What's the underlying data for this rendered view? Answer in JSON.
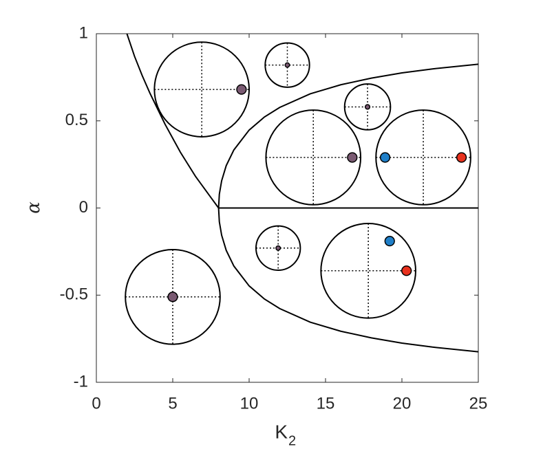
{
  "chart_data": {
    "type": "line",
    "x_label": "K",
    "x_label_subscript": "2",
    "y_label": "α",
    "xlim": [
      0,
      25
    ],
    "xticks": [
      0,
      5,
      10,
      15,
      20,
      25
    ],
    "ylim": [
      -1,
      1
    ],
    "yticks": [
      -1,
      -0.5,
      0,
      0.5,
      1
    ],
    "series": [
      {
        "color": "#000000",
        "x": [
          2,
          2.5,
          3,
          3.5,
          4,
          4.5,
          5,
          5.5,
          6,
          6.5,
          7,
          7.5,
          8
        ],
        "y": [
          1,
          0.87,
          0.76,
          0.66,
          0.57,
          0.48,
          0.4,
          0.32,
          0.25,
          0.18,
          0.12,
          0.06,
          0
        ]
      },
      {
        "color": "#000000",
        "x": [
          8,
          8.05,
          8.2,
          8.5,
          9,
          10,
          11,
          12,
          14,
          16,
          18,
          20,
          22,
          25
        ],
        "y": [
          0,
          0.079,
          0.156,
          0.243,
          0.333,
          0.447,
          0.522,
          0.577,
          0.655,
          0.707,
          0.745,
          0.775,
          0.798,
          0.825
        ]
      },
      {
        "color": "#000000",
        "x": [
          8,
          8.05,
          8.2,
          8.5,
          9,
          10,
          11,
          12,
          14,
          16,
          18,
          20,
          22,
          25
        ],
        "y": [
          0,
          -0.079,
          -0.156,
          -0.243,
          -0.333,
          -0.447,
          -0.522,
          -0.577,
          -0.655,
          -0.707,
          -0.745,
          -0.775,
          -0.798,
          -0.825
        ]
      },
      {
        "color": "#000000",
        "x": [
          8,
          25
        ],
        "y": [
          0,
          0
        ]
      }
    ],
    "circles": [
      {
        "x": 6.9,
        "y": 0.68,
        "radius": 3.1,
        "dots": [
          {
            "x": 9.5,
            "y": 0.68,
            "color": "#7a5a72"
          }
        ]
      },
      {
        "x": 12.5,
        "y": 0.82,
        "radius": 1.45,
        "dots": [
          {
            "x": 12.5,
            "y": 0.82,
            "color": "#7a5a72"
          }
        ]
      },
      {
        "x": 17.75,
        "y": 0.58,
        "radius": 1.5,
        "dots": [
          {
            "x": 17.75,
            "y": 0.58,
            "color": "#7a5a72"
          }
        ]
      },
      {
        "x": 14.2,
        "y": 0.29,
        "radius": 3.1,
        "dots": [
          {
            "x": 16.75,
            "y": 0.29,
            "color": "#7a5a72"
          }
        ]
      },
      {
        "x": 21.4,
        "y": 0.29,
        "radius": 3.1,
        "dots": [
          {
            "x": 18.9,
            "y": 0.29,
            "color": "#1f7fc8"
          },
          {
            "x": 23.9,
            "y": 0.29,
            "color": "#e8321e"
          }
        ]
      },
      {
        "x": 11.9,
        "y": -0.23,
        "radius": 1.45,
        "dots": [
          {
            "x": 11.9,
            "y": -0.23,
            "color": "#7a5a72"
          }
        ]
      },
      {
        "x": 17.8,
        "y": -0.36,
        "radius": 3.1,
        "dots": [
          {
            "x": 19.2,
            "y": -0.19,
            "color": "#1f7fc8"
          },
          {
            "x": 20.3,
            "y": -0.36,
            "color": "#e8321e"
          }
        ]
      },
      {
        "x": 5,
        "y": -0.51,
        "radius": 3.1,
        "dots": [
          {
            "x": 5,
            "y": -0.51,
            "color": "#7a5a72"
          }
        ]
      }
    ]
  }
}
